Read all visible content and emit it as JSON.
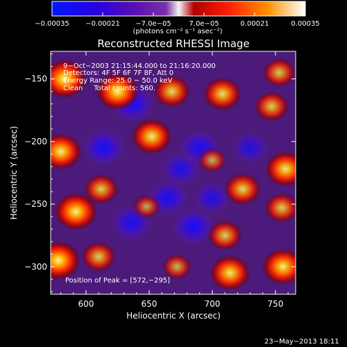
{
  "colorbar": {
    "tick_labels": [
      "−0.00035",
      "−0.00021",
      "−7.0e−05",
      "7.0e−05",
      "0.00021",
      "0.00035"
    ],
    "tick_values": [
      -0.00035,
      -0.00021,
      -7e-05,
      7e-05,
      0.00021,
      0.00035
    ],
    "units_label": "(photons cm⁻² s⁻¹ asec⁻²)",
    "colors": [
      "#0000ff",
      "#4000a0",
      "#7a1fc0",
      "#ffffff",
      "#ff0000",
      "#ff9000",
      "#ffffff"
    ]
  },
  "chart_data": {
    "type": "heatmap",
    "title": "Reconstructed RHESSI Image",
    "xlabel": "Heliocentric X (arcsec)",
    "ylabel": "Heliocentric Y (arcsec)",
    "xlim": [
      572,
      766
    ],
    "ylim": [
      -322,
      -128
    ],
    "x_ticks": [
      600,
      650,
      700,
      750
    ],
    "y_ticks": [
      -150,
      -200,
      -250,
      -300
    ],
    "annotations": [
      "9−Oct−2003 21:15:44.000 to 21:16:20.000",
      "Detectors: 4F 5F 6F 7F 8F, Att 0",
      "Energy Range: 25.0 − 50.0 keV",
      "Clean     Total counts: 560."
    ],
    "peak_label": "Position of Peak = [572,−295]",
    "peak": [
      572,
      -295
    ],
    "hot_blobs": [
      {
        "x": 583,
        "y": -150,
        "level": 1.0
      },
      {
        "x": 580,
        "y": -208,
        "level": 0.9
      },
      {
        "x": 625,
        "y": -160,
        "level": 0.95
      },
      {
        "x": 668,
        "y": -160,
        "level": 0.7
      },
      {
        "x": 652,
        "y": -196,
        "level": 0.85
      },
      {
        "x": 708,
        "y": -162,
        "level": 0.75
      },
      {
        "x": 753,
        "y": -145,
        "level": 0.55
      },
      {
        "x": 747,
        "y": -172,
        "level": 0.6
      },
      {
        "x": 758,
        "y": -222,
        "level": 0.85
      },
      {
        "x": 700,
        "y": -215,
        "level": 0.35
      },
      {
        "x": 592,
        "y": -256,
        "level": 0.95
      },
      {
        "x": 612,
        "y": -238,
        "level": 0.6
      },
      {
        "x": 724,
        "y": -238,
        "level": 0.7
      },
      {
        "x": 755,
        "y": -253,
        "level": 0.6
      },
      {
        "x": 710,
        "y": -275,
        "level": 0.6
      },
      {
        "x": 714,
        "y": -305,
        "level": 0.85
      },
      {
        "x": 578,
        "y": -295,
        "level": 1.0
      },
      {
        "x": 610,
        "y": -292,
        "level": 0.6
      },
      {
        "x": 756,
        "y": -300,
        "level": 0.9
      },
      {
        "x": 672,
        "y": -300,
        "level": 0.4
      },
      {
        "x": 648,
        "y": -252,
        "level": 0.3
      }
    ],
    "cold_blobs": [
      {
        "x": 637,
        "y": -170,
        "level": 0.9
      },
      {
        "x": 614,
        "y": -205,
        "level": 0.9
      },
      {
        "x": 690,
        "y": -205,
        "level": 0.8
      },
      {
        "x": 675,
        "y": -222,
        "level": 0.7
      },
      {
        "x": 665,
        "y": -245,
        "level": 0.8
      },
      {
        "x": 685,
        "y": -268,
        "level": 0.9
      },
      {
        "x": 636,
        "y": -265,
        "level": 0.8
      },
      {
        "x": 700,
        "y": -245,
        "level": 0.6
      },
      {
        "x": 730,
        "y": -205,
        "level": 0.55
      }
    ]
  },
  "footer": {
    "timestamp": "23−May−2013 18:11"
  }
}
